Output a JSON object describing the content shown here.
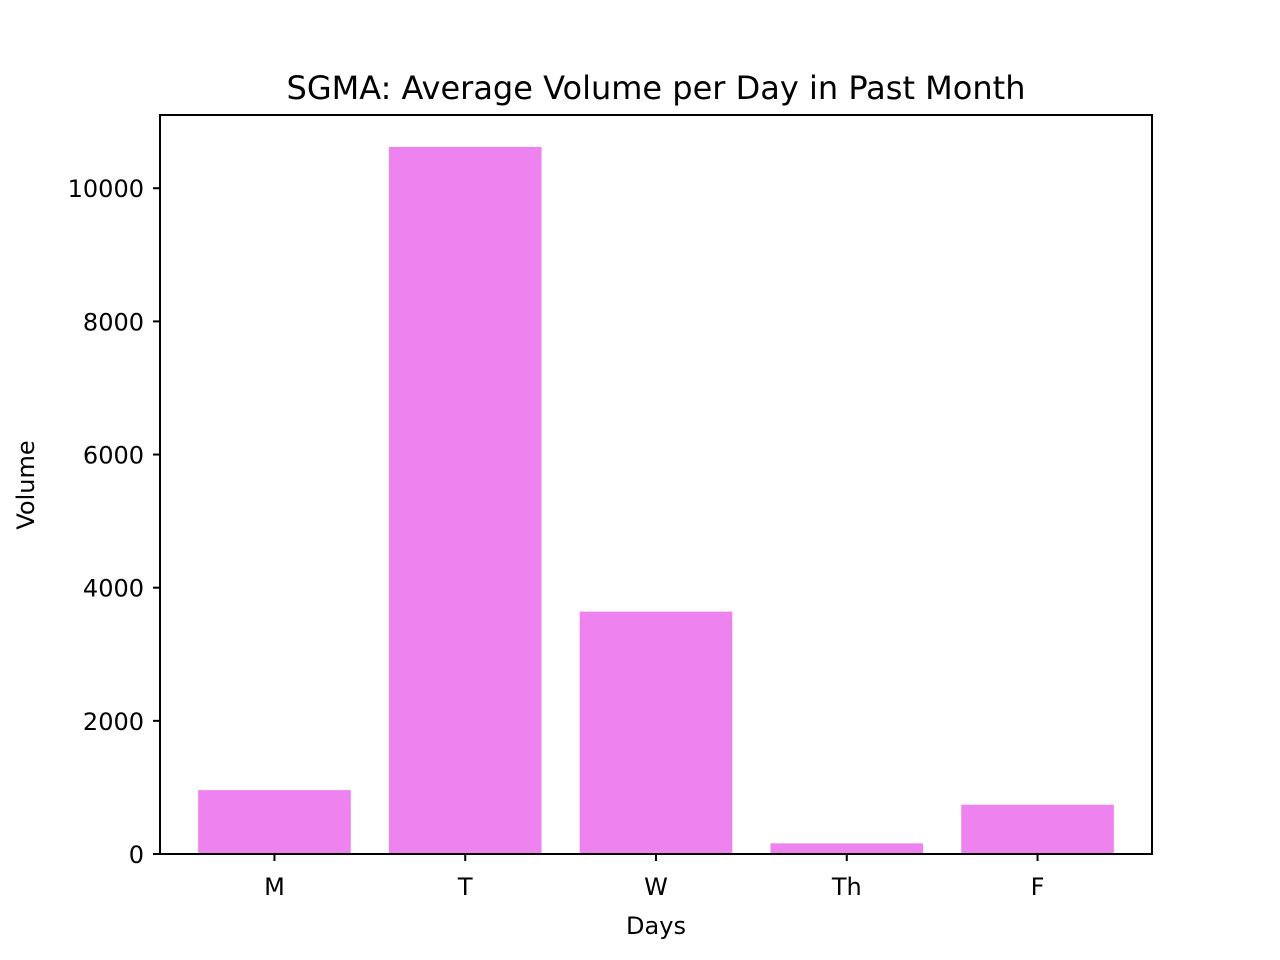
{
  "chart_data": {
    "type": "bar",
    "title": "SGMA: Average Volume per Day in Past Month",
    "xlabel": "Days",
    "ylabel": "Volume",
    "categories": [
      "M",
      "T",
      "W",
      "Th",
      "F"
    ],
    "values": [
      960,
      10620,
      3640,
      160,
      740
    ],
    "ylim": [
      0,
      11100
    ],
    "yticks": [
      0,
      2000,
      4000,
      6000,
      8000,
      10000
    ],
    "bar_color": "#ee82ee",
    "grid": false,
    "legend": "none"
  }
}
